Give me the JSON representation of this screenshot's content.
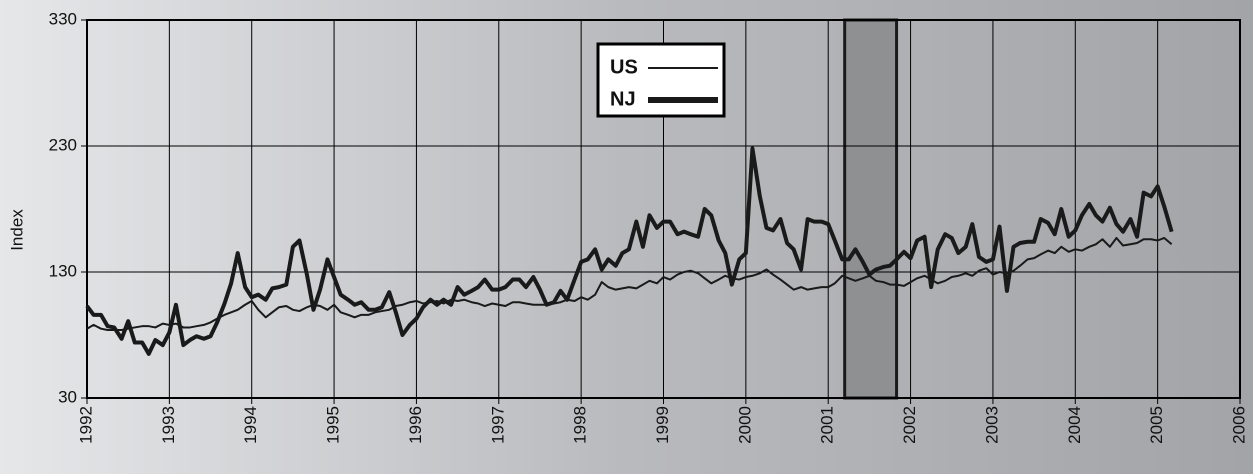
{
  "chart_data": {
    "type": "line",
    "y_label": "Index",
    "xlim": [
      1992,
      2006
    ],
    "ylim": [
      30,
      330
    ],
    "xticks": [
      1992,
      1993,
      1994,
      1995,
      1996,
      1997,
      1998,
      1999,
      2000,
      2001,
      2002,
      2003,
      2004,
      2005,
      2006
    ],
    "yticks": [
      30,
      130,
      230,
      330
    ],
    "grid": true,
    "shaded_band": [
      2001.2,
      2001.83
    ],
    "x": [
      1992,
      1992.08,
      1992.17,
      1992.25,
      1992.33,
      1992.42,
      1992.5,
      1992.58,
      1992.67,
      1992.75,
      1992.83,
      1992.92,
      1993,
      1993.08,
      1993.17,
      1993.25,
      1993.33,
      1993.42,
      1993.5,
      1993.58,
      1993.67,
      1993.75,
      1993.83,
      1993.92,
      1994,
      1994.08,
      1994.17,
      1994.25,
      1994.33,
      1994.42,
      1994.5,
      1994.58,
      1994.67,
      1994.75,
      1994.83,
      1994.92,
      1995,
      1995.08,
      1995.17,
      1995.25,
      1995.33,
      1995.42,
      1995.5,
      1995.58,
      1995.67,
      1995.75,
      1995.83,
      1995.92,
      1996,
      1996.08,
      1996.17,
      1996.25,
      1996.33,
      1996.42,
      1996.5,
      1996.58,
      1996.67,
      1996.75,
      1996.83,
      1996.92,
      1997,
      1997.08,
      1997.17,
      1997.25,
      1997.33,
      1997.42,
      1997.5,
      1997.58,
      1997.67,
      1997.75,
      1997.83,
      1997.92,
      1998,
      1998.08,
      1998.17,
      1998.25,
      1998.33,
      1998.42,
      1998.5,
      1998.58,
      1998.67,
      1998.75,
      1998.83,
      1998.92,
      1999,
      1999.08,
      1999.17,
      1999.25,
      1999.33,
      1999.42,
      1999.5,
      1999.58,
      1999.67,
      1999.75,
      1999.83,
      1999.92,
      2000,
      2000.08,
      2000.17,
      2000.25,
      2000.33,
      2000.42,
      2000.5,
      2000.58,
      2000.67,
      2000.75,
      2000.83,
      2000.92,
      2001,
      2001.08,
      2001.17,
      2001.25,
      2001.33,
      2001.42,
      2001.5,
      2001.58,
      2001.67,
      2001.75,
      2001.83,
      2001.92,
      2002,
      2002.08,
      2002.17,
      2002.25,
      2002.33,
      2002.42,
      2002.5,
      2002.58,
      2002.67,
      2002.75,
      2002.83,
      2002.92,
      2003,
      2003.08,
      2003.17,
      2003.25,
      2003.33,
      2003.42,
      2003.5,
      2003.58,
      2003.67,
      2003.75,
      2003.83,
      2003.92,
      2004,
      2004.08,
      2004.17,
      2004.25,
      2004.33,
      2004.42,
      2004.5,
      2004.58,
      2004.67,
      2004.75,
      2004.83,
      2004.92,
      2005,
      2005.08,
      2005.17
    ],
    "series": [
      {
        "name": "US",
        "color": "#1a1a1a",
        "width": 2,
        "values": [
          85,
          88,
          85,
          84,
          84,
          84,
          85,
          86,
          87,
          87,
          86,
          89,
          88,
          89,
          86,
          86,
          87,
          88,
          90,
          93,
          96,
          98,
          100,
          104,
          107,
          100,
          94,
          98,
          102,
          103,
          100,
          99,
          102,
          104,
          103,
          100,
          104,
          98,
          96,
          94,
          96,
          96,
          98,
          99,
          100,
          103,
          104,
          106,
          107,
          105,
          106,
          107,
          105,
          108,
          107,
          108,
          106,
          105,
          103,
          105,
          104,
          103,
          106,
          106,
          105,
          104,
          104,
          104,
          105,
          106,
          108,
          107,
          110,
          108,
          112,
          122,
          118,
          116,
          117,
          118,
          117,
          120,
          123,
          121,
          126,
          124,
          128,
          130,
          131,
          129,
          125,
          121,
          124,
          127,
          125,
          124,
          126,
          127,
          129,
          132,
          128,
          124,
          120,
          116,
          118,
          116,
          117,
          118,
          118,
          121,
          127,
          125,
          123,
          125,
          127,
          123,
          122,
          120,
          120,
          119,
          122,
          125,
          127,
          124,
          121,
          123,
          126,
          127,
          129,
          127,
          131,
          133,
          128,
          130,
          129,
          131,
          135,
          140,
          141,
          144,
          147,
          145,
          150,
          146,
          148,
          147,
          150,
          152,
          156,
          150,
          157,
          151,
          152,
          153,
          156,
          156,
          155,
          157,
          152
        ]
      },
      {
        "name": "NJ",
        "color": "#1a1a1a",
        "width": 4,
        "values": [
          103,
          96,
          96,
          87,
          86,
          77,
          91,
          74,
          74,
          65,
          76,
          72,
          82,
          104,
          72,
          76,
          79,
          77,
          79,
          90,
          105,
          121,
          145,
          118,
          110,
          112,
          108,
          117,
          118,
          120,
          150,
          155,
          128,
          100,
          116,
          140,
          126,
          112,
          108,
          104,
          106,
          100,
          100,
          102,
          114,
          98,
          80,
          88,
          93,
          102,
          108,
          104,
          108,
          104,
          118,
          112,
          115,
          118,
          124,
          116,
          116,
          118,
          124,
          124,
          118,
          126,
          116,
          104,
          106,
          115,
          108,
          124,
          138,
          140,
          148,
          132,
          140,
          135,
          145,
          148,
          170,
          150,
          175,
          165,
          170,
          170,
          160,
          162,
          160,
          158,
          180,
          175,
          155,
          145,
          120,
          140,
          145,
          228,
          190,
          165,
          163,
          172,
          153,
          148,
          132,
          172,
          170,
          170,
          168,
          155,
          140,
          140,
          148,
          138,
          128,
          132,
          134,
          135,
          140,
          146,
          141,
          155,
          158,
          118,
          148,
          160,
          157,
          145,
          150,
          168,
          142,
          138,
          140,
          166,
          115,
          150,
          153,
          154,
          154,
          172,
          169,
          160,
          180,
          158,
          163,
          175,
          184,
          175,
          170,
          181,
          168,
          162,
          172,
          158,
          193,
          190,
          198,
          182,
          162
        ]
      }
    ]
  }
}
